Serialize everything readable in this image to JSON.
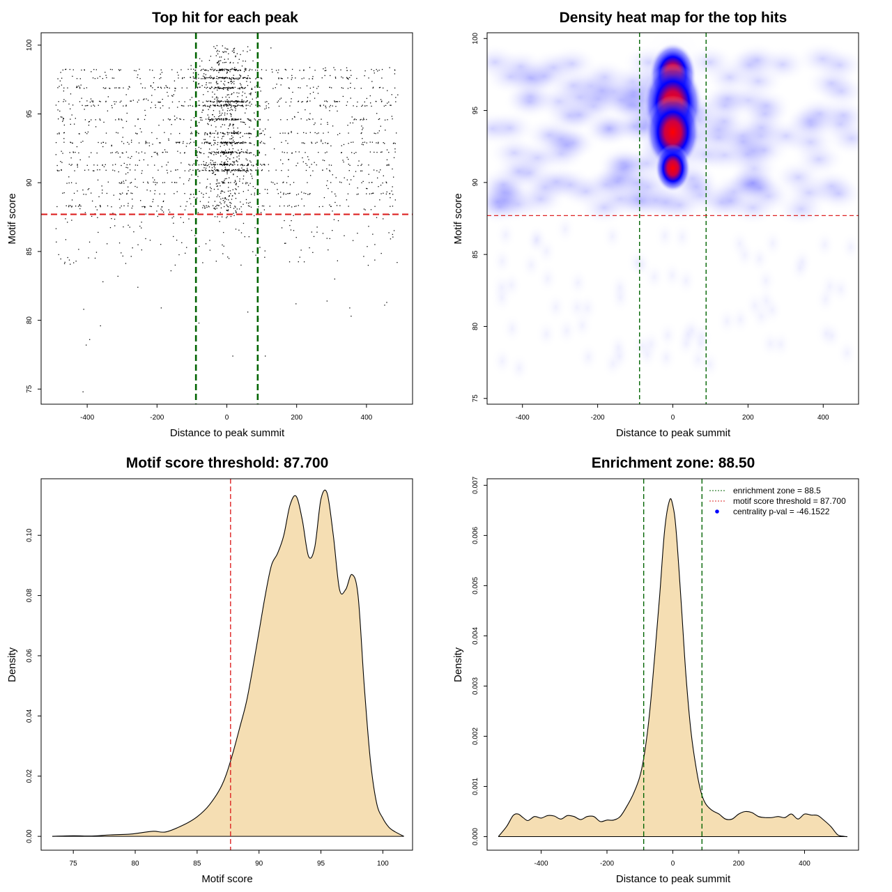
{
  "colors": {
    "density_fill": "#f5deb3",
    "enrichment_line": "#006400",
    "threshold_line": "#dd2222",
    "heat_low": "#ffffff",
    "heat_mid": "#0000ff",
    "heat_high": "#ff0000",
    "legend_point": "#0000ff"
  },
  "chart_data": [
    {
      "id": "panel1",
      "type": "scatter",
      "title": "Top hit for each peak",
      "xlabel": "Distance to peak summit",
      "ylabel": "Motif score",
      "xlim": [
        -532,
        532
      ],
      "ylim": [
        73.9,
        100.9
      ],
      "xticks": [
        -400,
        -200,
        0,
        200,
        400
      ],
      "yticks": [
        75,
        80,
        85,
        90,
        95,
        100
      ],
      "vlines": [
        -88.5,
        88.5
      ],
      "hline": 87.7,
      "point_count": 2600,
      "point_distribution": {
        "center_fraction": 0.43,
        "center_sd": 40,
        "center_score_range": [
          87.5,
          100
        ],
        "background_x_range": [
          -490,
          490
        ],
        "score_levels": [
          98.2,
          97.6,
          96.9,
          95.9,
          95.6,
          94.6,
          93.6,
          92.9,
          92.2,
          91.3,
          90.9,
          90.0,
          89.2,
          88.3
        ]
      },
      "outliers": [
        {
          "x": -412,
          "y": 74.8
        },
        {
          "x": -403,
          "y": 78.2
        },
        {
          "x": -393,
          "y": 78.6
        },
        {
          "x": -362,
          "y": 79.6
        },
        {
          "x": -410,
          "y": 80.8
        },
        {
          "x": -188,
          "y": 80.9
        },
        {
          "x": 60,
          "y": 80.6
        },
        {
          "x": 90,
          "y": 80.1
        },
        {
          "x": 198,
          "y": 81.2
        },
        {
          "x": 287,
          "y": 81.4
        },
        {
          "x": 352,
          "y": 80.9
        },
        {
          "x": 356,
          "y": 80.3
        },
        {
          "x": 452,
          "y": 81.1
        },
        {
          "x": 458,
          "y": 81.3
        },
        {
          "x": 17,
          "y": 77.4
        },
        {
          "x": 110,
          "y": 77.4
        },
        {
          "x": -255,
          "y": 82.4
        },
        {
          "x": -355,
          "y": 82.8
        },
        {
          "x": -312,
          "y": 83.2
        },
        {
          "x": -160,
          "y": 83.6
        },
        {
          "x": 309,
          "y": 83.0
        },
        {
          "x": -432,
          "y": 84.3
        },
        {
          "x": 405,
          "y": 84.0
        },
        {
          "x": -80,
          "y": 79.8
        }
      ]
    },
    {
      "id": "panel2",
      "type": "heatmap",
      "title": "Density heat map for the top hits",
      "xlabel": "Distance to peak summit",
      "ylabel": "Motif score",
      "xlim": [
        -494,
        494
      ],
      "ylim": [
        74.6,
        100.4
      ],
      "xticks": [
        -400,
        -200,
        0,
        200,
        400
      ],
      "yticks": [
        75,
        80,
        85,
        90,
        95,
        100
      ],
      "vlines": [
        -88.5,
        88.5
      ],
      "hline": 87.7,
      "hotspots": [
        {
          "x": 0,
          "y": 97.5,
          "weight": 1.0
        },
        {
          "x": 0,
          "y": 95.5,
          "weight": 1.25
        },
        {
          "x": 0,
          "y": 93.5,
          "weight": 1.15
        },
        {
          "x": 0,
          "y": 91.0,
          "weight": 0.75
        }
      ]
    },
    {
      "id": "panel3",
      "type": "area",
      "title": "Motif score threshold: 87.700",
      "xlabel": "Motif score",
      "ylabel": "Density",
      "xlim": [
        72.4,
        102.4
      ],
      "ylim": [
        -0.0046,
        0.1188
      ],
      "xticks": [
        75,
        80,
        85,
        90,
        95,
        100
      ],
      "yticks": [
        0.0,
        0.02,
        0.04,
        0.06,
        0.08,
        0.1
      ],
      "ytick_labels": [
        "0.00",
        "0.02",
        "0.04",
        "0.06",
        "0.08",
        "0.10"
      ],
      "vlines": [],
      "threshold_line": 87.7,
      "x": [
        73.3,
        75.0,
        76.5,
        78.0,
        79.5,
        80.5,
        81.5,
        82.5,
        84.0,
        85.0,
        86.0,
        87.0,
        87.7,
        88.5,
        89.0,
        89.5,
        90.0,
        90.5,
        91.0,
        91.5,
        92.0,
        92.5,
        93.0,
        93.5,
        94.0,
        94.5,
        95.0,
        95.5,
        96.0,
        96.5,
        97.0,
        97.5,
        98.0,
        98.5,
        99.0,
        99.5,
        100.0,
        100.5,
        101.0,
        101.7
      ],
      "y": [
        0.0,
        0.0002,
        0.0001,
        0.0005,
        0.0007,
        0.0012,
        0.0017,
        0.0015,
        0.004,
        0.0065,
        0.0105,
        0.017,
        0.025,
        0.037,
        0.045,
        0.056,
        0.068,
        0.08,
        0.09,
        0.094,
        0.1,
        0.11,
        0.113,
        0.105,
        0.093,
        0.096,
        0.112,
        0.114,
        0.1,
        0.082,
        0.082,
        0.087,
        0.08,
        0.05,
        0.025,
        0.011,
        0.006,
        0.003,
        0.0015,
        0.0
      ]
    },
    {
      "id": "panel4",
      "type": "area",
      "title": "Enrichment zone: 88.50",
      "xlabel": "Distance to peak summit",
      "ylabel": "Density",
      "xlim": [
        -564,
        564
      ],
      "ylim": [
        -0.00027,
        0.00713
      ],
      "xticks": [
        -400,
        -200,
        0,
        200,
        400
      ],
      "yticks": [
        0.0,
        0.001,
        0.002,
        0.003,
        0.004,
        0.005,
        0.006,
        0.007
      ],
      "ytick_labels": [
        "0.000",
        "0.001",
        "0.002",
        "0.003",
        "0.004",
        "0.005",
        "0.006",
        "0.007"
      ],
      "vlines": [
        -88.5,
        88.5
      ],
      "x": [
        -530,
        -505,
        -485,
        -470,
        -455,
        -440,
        -420,
        -400,
        -380,
        -360,
        -340,
        -320,
        -300,
        -280,
        -260,
        -240,
        -220,
        -200,
        -180,
        -160,
        -140,
        -120,
        -100,
        -85,
        -70,
        -55,
        -40,
        -25,
        -10,
        0,
        10,
        25,
        40,
        55,
        70,
        85,
        100,
        120,
        140,
        160,
        180,
        200,
        220,
        240,
        260,
        280,
        300,
        320,
        340,
        360,
        380,
        400,
        420,
        440,
        460,
        480,
        500,
        515,
        530
      ],
      "y": [
        0.0,
        0.0002,
        0.00042,
        0.00045,
        0.00038,
        0.00032,
        0.0004,
        0.00037,
        0.00042,
        0.00041,
        0.00035,
        0.00042,
        0.0004,
        0.00034,
        0.0004,
        0.0004,
        0.0003,
        0.00033,
        0.00033,
        0.0004,
        0.0006,
        0.00085,
        0.0012,
        0.0017,
        0.0025,
        0.0036,
        0.0048,
        0.0061,
        0.0067,
        0.0066,
        0.0061,
        0.0047,
        0.0032,
        0.0021,
        0.0014,
        0.0009,
        0.00065,
        0.00052,
        0.00045,
        0.00035,
        0.00035,
        0.00045,
        0.0005,
        0.00048,
        0.0004,
        0.00038,
        0.00038,
        0.0004,
        0.00038,
        0.00045,
        0.00035,
        0.00045,
        0.00043,
        0.00042,
        0.00032,
        0.0002,
        4e-05,
        1e-05,
        0.0
      ],
      "legend": [
        {
          "label": "enrichment zone = 88.5",
          "style": "dotted",
          "color": "#006400"
        },
        {
          "label": "motif score threshold = 87.700",
          "style": "dotted",
          "color": "#dd2222"
        },
        {
          "label": "centrality p-val = -46.1522",
          "style": "point",
          "color": "#0000ff"
        }
      ]
    }
  ]
}
